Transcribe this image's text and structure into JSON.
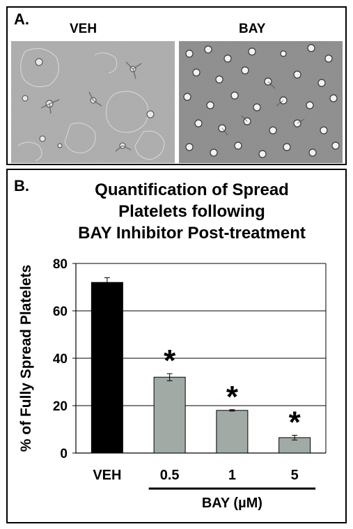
{
  "panel_a": {
    "letter": "A.",
    "images": [
      {
        "label": "VEH",
        "description_icon": "micrograph-spread-platelets"
      },
      {
        "label": "BAY",
        "description_icon": "micrograph-round-platelets"
      }
    ]
  },
  "panel_b": {
    "letter": "B.",
    "title_lines": [
      "Quantification of Spread",
      "Platelets following",
      "BAY Inhibitor Post-treatment"
    ]
  },
  "chart_data": {
    "type": "bar",
    "title": "Quantification of Spread Platelets following BAY Inhibitor Post-treatment",
    "categories": [
      "VEH",
      "0.5",
      "1",
      "5"
    ],
    "values": [
      72,
      32,
      18,
      6.5
    ],
    "errors": [
      2,
      1.5,
      0.3,
      1
    ],
    "significance": [
      "",
      "*",
      "*",
      "*"
    ],
    "bar_colors": [
      "#000000",
      "#a2aaa6",
      "#a2aaa6",
      "#a2aaa6"
    ],
    "ylabel": "% of Fully Spread Platelets",
    "xgroup_label": "BAY (µM)",
    "ylim": [
      0,
      80
    ],
    "yticks": [
      0,
      20,
      40,
      60,
      80
    ],
    "grid": true
  }
}
